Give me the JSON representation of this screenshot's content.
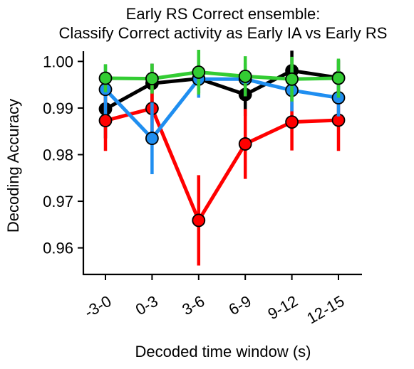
{
  "chart_data": {
    "type": "line",
    "title_line1": "Early RS Correct ensemble:",
    "title_line2": "Classify Correct activity as Early IA vs Early RS",
    "xlabel": "Decoded time window (s)",
    "ylabel": "Decoding Accuracy",
    "categories": [
      "-3-0",
      "0-3",
      "3-6",
      "6-9",
      "9-12",
      "12-15"
    ],
    "ylim": [
      0.9543,
      1.0025
    ],
    "yticks": [
      0.96,
      0.97,
      0.98,
      0.99,
      1.0
    ],
    "ytick_labels": [
      "0.96",
      "0.97",
      "0.98",
      "0.99",
      "1.00"
    ],
    "grid": false,
    "legend": "none",
    "series": [
      {
        "color": "#000000",
        "values": [
          0.9898,
          0.9953,
          0.9963,
          0.9929,
          0.998,
          0.9965
        ],
        "err": [
          0.0063,
          0.0042,
          0.0031,
          0.0046,
          0.0043,
          0.0038
        ]
      },
      {
        "color": "#ff0000",
        "values": [
          0.9873,
          0.9899,
          0.9659,
          0.9823,
          0.987,
          0.9874
        ],
        "err": [
          0.0065,
          0.0061,
          0.0097,
          0.0075,
          0.0061,
          0.0066
        ]
      },
      {
        "color": "#1f8ef0",
        "values": [
          0.994,
          0.9835,
          0.9962,
          0.9962,
          0.9938,
          0.9922
        ],
        "err": [
          0.0053,
          0.0077,
          0.004,
          0.0034,
          0.0045,
          0.004
        ]
      },
      {
        "color": "#33cc33",
        "values": [
          0.9964,
          0.9963,
          0.9977,
          0.9968,
          0.9962,
          0.9964
        ],
        "err": [
          0.003,
          0.0032,
          0.0048,
          0.0043,
          0.0048,
          0.0042
        ]
      }
    ]
  }
}
